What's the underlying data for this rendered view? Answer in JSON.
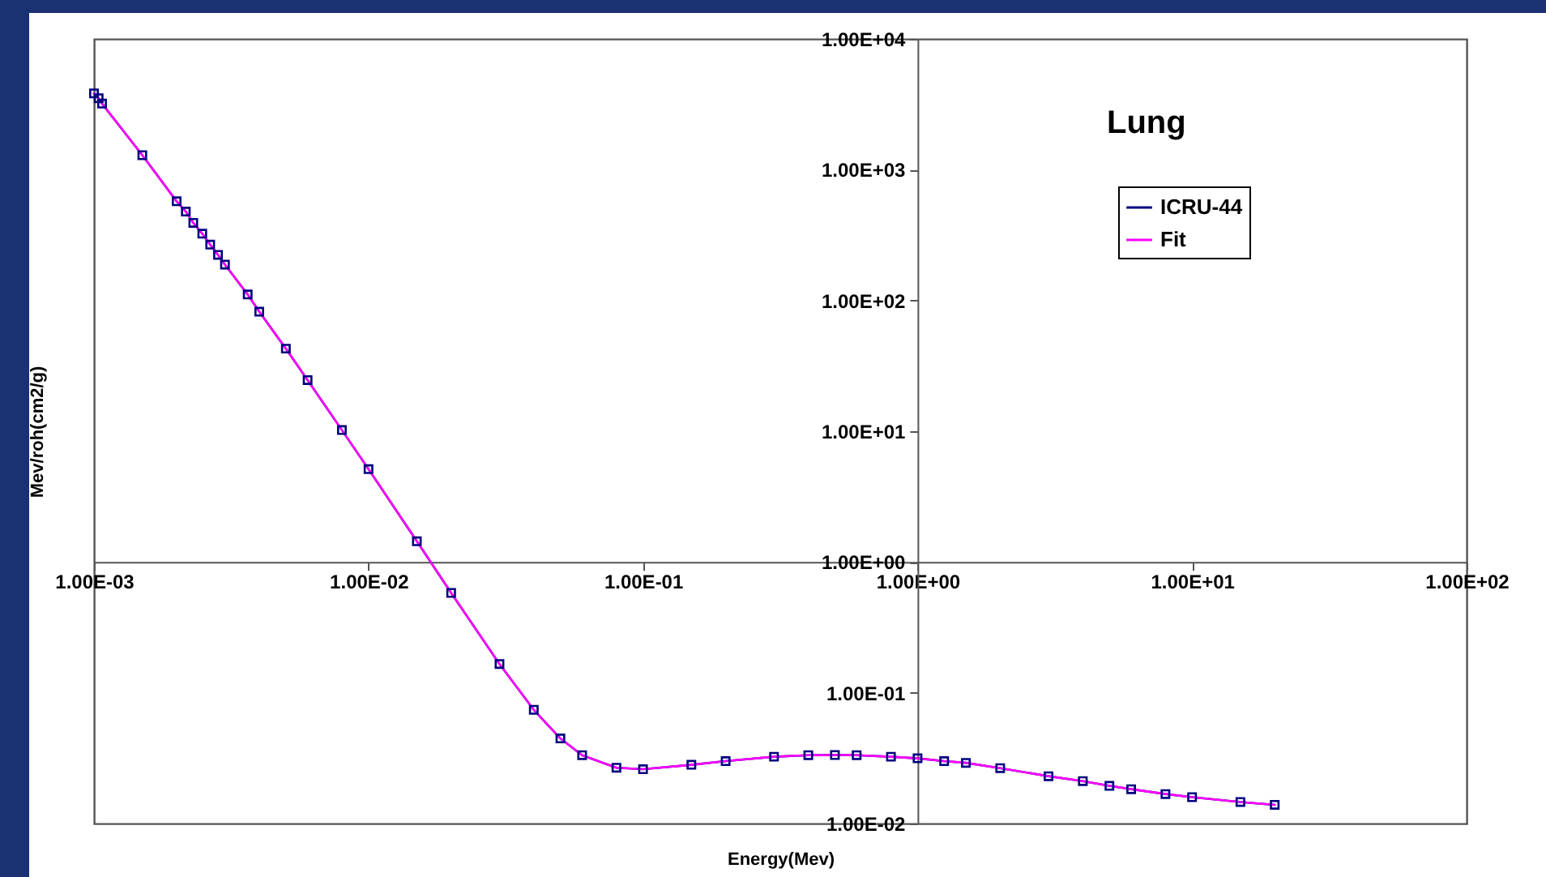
{
  "chart_data": {
    "type": "line",
    "title": "Lung",
    "xlabel": "Energy(Mev)",
    "ylabel": "Mev/roh(cm2/g)",
    "log": "xy",
    "grid": false,
    "legend": "top right",
    "xlim": [
      0.001,
      100
    ],
    "ylim": [
      0.01,
      10000
    ],
    "xticks": [
      {
        "value": 0.001,
        "label": "1.00E-03"
      },
      {
        "value": 0.01,
        "label": "1.00E-02"
      },
      {
        "value": 0.1,
        "label": "1.00E-01"
      },
      {
        "value": 1,
        "label": "1.00E+00"
      },
      {
        "value": 10,
        "label": "1.00E+01"
      },
      {
        "value": 100,
        "label": "1.00E+02"
      }
    ],
    "yticks": [
      {
        "value": 0.01,
        "label": "1.00E-02"
      },
      {
        "value": 0.1,
        "label": "1.00E-01"
      },
      {
        "value": 1,
        "label": "1.00E+00"
      },
      {
        "value": 10,
        "label": "1.00E+01"
      },
      {
        "value": 100,
        "label": "1.00E+02"
      },
      {
        "value": 1000,
        "label": "1.00E+03"
      },
      {
        "value": 10000,
        "label": "1.00E+04"
      }
    ],
    "x": [
      0.001,
      0.00104,
      0.00107,
      0.0015,
      0.002,
      0.00216,
      0.0023,
      0.00248,
      0.00265,
      0.00283,
      0.003,
      0.00363,
      0.004,
      0.005,
      0.006,
      0.008,
      0.01,
      0.015,
      0.02,
      0.03,
      0.04,
      0.05,
      0.06,
      0.08,
      0.1,
      0.15,
      0.2,
      0.3,
      0.4,
      0.5,
      0.6,
      0.8,
      1,
      1.25,
      1.5,
      2,
      3,
      4,
      5,
      6,
      8,
      10,
      15,
      20
    ],
    "series": [
      {
        "name": "ICRU-44",
        "marker": "square",
        "color": "#000080",
        "values": [
          3830,
          3520,
          3200,
          1290,
          573,
          478,
          392,
          324,
          267,
          223,
          188,
          111,
          82,
          42.8,
          24.6,
          10.2,
          5.13,
          1.44,
          0.58,
          0.166,
          0.074,
          0.0447,
          0.0333,
          0.0267,
          0.026,
          0.0281,
          0.03,
          0.0324,
          0.0333,
          0.0334,
          0.0333,
          0.0324,
          0.0315,
          0.03,
          0.0291,
          0.0265,
          0.023,
          0.0211,
          0.0194,
          0.0183,
          0.0168,
          0.0159,
          0.0146,
          0.0139
        ]
      },
      {
        "name": "Fit",
        "marker": "none",
        "color": "#ff00ff",
        "values": [
          3830,
          3520,
          3200,
          1290,
          573,
          478,
          392,
          324,
          267,
          223,
          188,
          111,
          82,
          42.8,
          24.6,
          10.2,
          5.13,
          1.44,
          0.58,
          0.166,
          0.074,
          0.0447,
          0.0333,
          0.0267,
          0.026,
          0.0281,
          0.03,
          0.0324,
          0.0333,
          0.0334,
          0.0333,
          0.0324,
          0.0315,
          0.03,
          0.0291,
          0.0265,
          0.023,
          0.0211,
          0.0194,
          0.0183,
          0.0168,
          0.0159,
          0.0146,
          0.0139
        ]
      }
    ]
  }
}
